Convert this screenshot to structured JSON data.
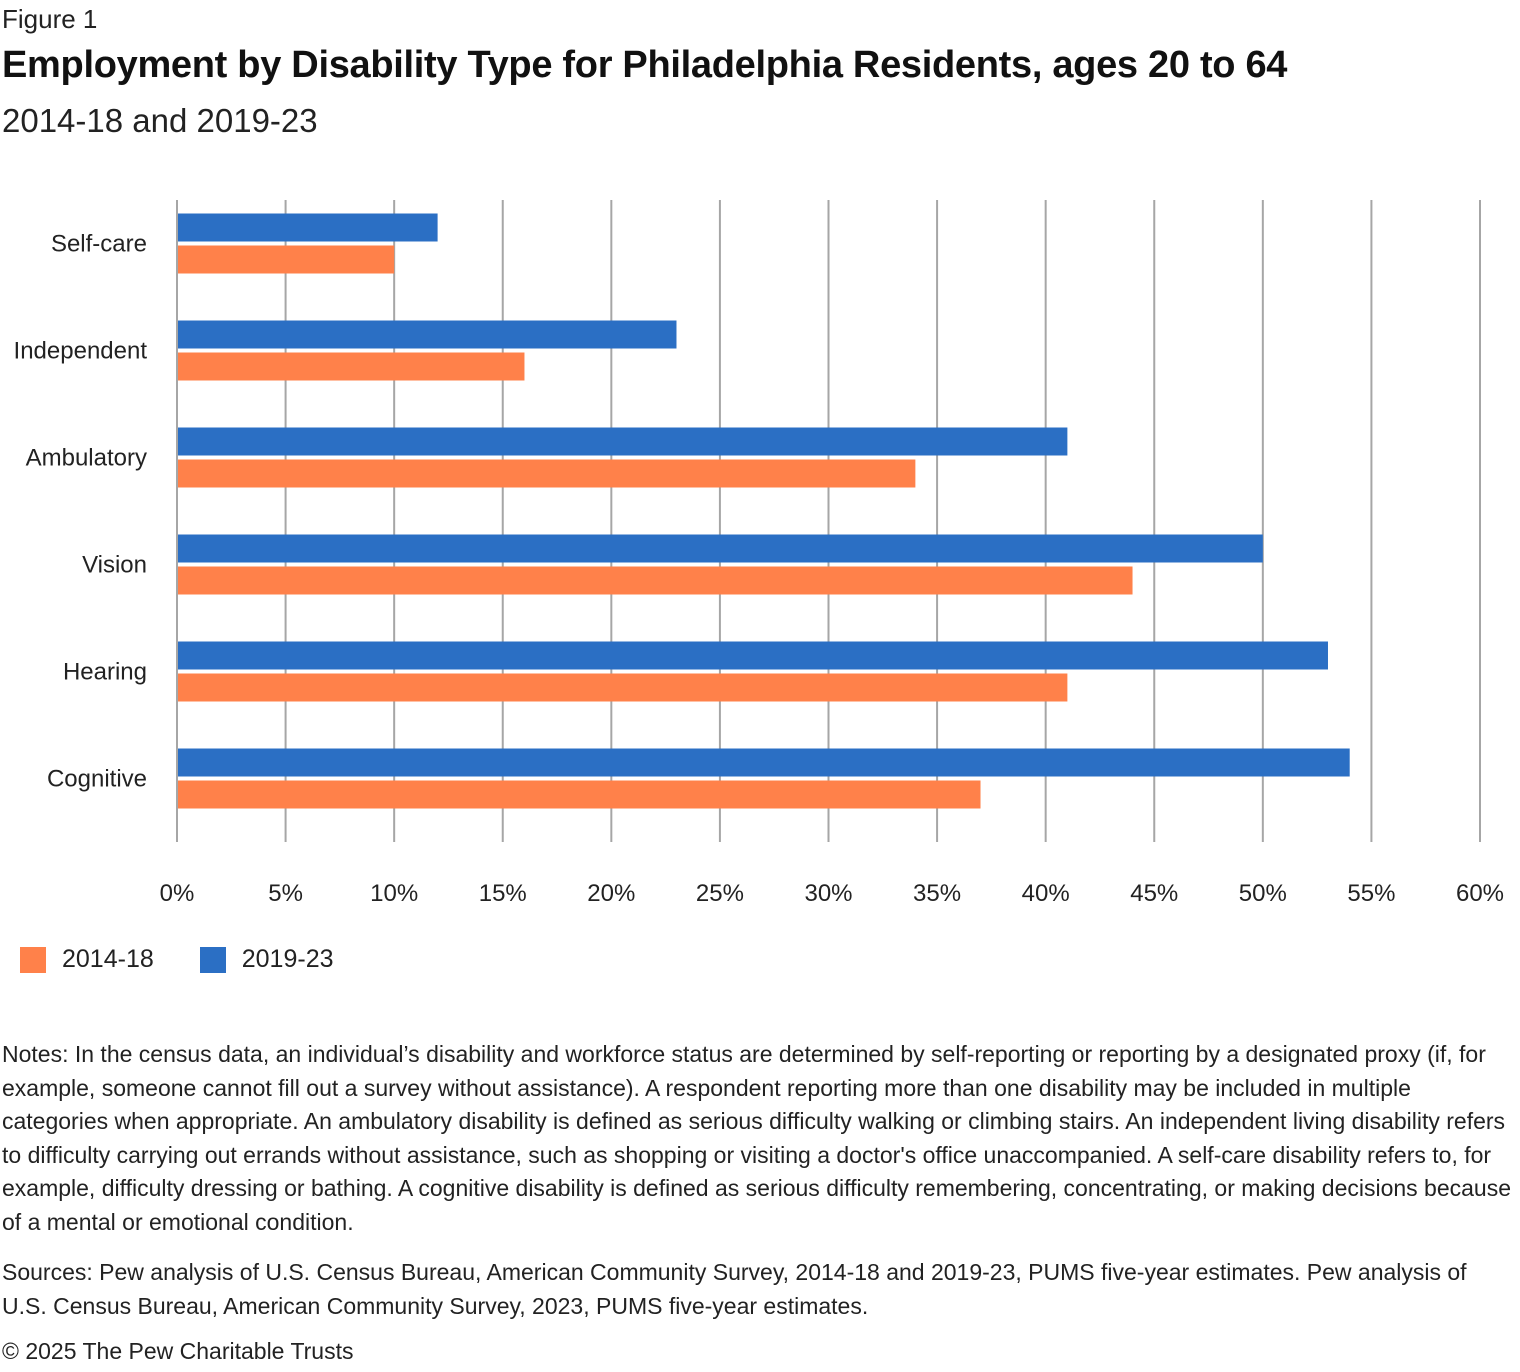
{
  "figure_label": "Figure 1",
  "notes": "Notes: In the census data, an individual’s disability and workforce status are determined by self-reporting or reporting by a designated proxy (if, for example, someone cannot fill out a survey without assistance). A respondent reporting more than one disability may be included in multiple categories when appropriate. An ambulatory disability is defined as serious difficulty walking or climbing stairs. An independent living disability refers to difficulty carrying out errands without assistance, such as shopping or visiting a doctor's office unaccompanied. A self-care disability refers to, for example, difficulty dressing or bathing. A cognitive disability is defined as serious difficulty remembering, concentrating, or making decisions because of a mental or emotional condition.",
  "sources": "Sources: Pew analysis of U.S. Census Bureau, American Community Survey, 2014-18 and 2019-23, PUMS five-year estimates. Pew analysis of U.S. Census Bureau, American Community Survey, 2023, PUMS five-year estimates.",
  "copyright": "© 2025 The Pew Charitable Trusts",
  "chart_data": {
    "type": "bar",
    "orientation": "horizontal",
    "title": "Employment by Disability Type for Philadelphia Residents, ages 20 to 64",
    "subtitle": "2014-18 and 2019-23",
    "xlabel": "",
    "ylabel": "",
    "categories": [
      "Self-care",
      "Independent",
      "Ambulatory",
      "Vision",
      "Hearing",
      "Cognitive"
    ],
    "series": [
      {
        "name": "2019-23",
        "color": "#2b6fc4",
        "values": [
          12,
          23,
          41,
          50,
          53,
          54
        ]
      },
      {
        "name": "2014-18",
        "color": "#ff814a",
        "values": [
          10,
          16,
          34,
          44,
          41,
          37
        ]
      }
    ],
    "xlim": [
      0,
      60
    ],
    "xticks": [
      0,
      5,
      10,
      15,
      20,
      25,
      30,
      35,
      40,
      45,
      50,
      55,
      60
    ],
    "xtick_labels": [
      "0%",
      "5%",
      "10%",
      "15%",
      "20%",
      "25%",
      "30%",
      "35%",
      "40%",
      "45%",
      "50%",
      "55%",
      "60%"
    ],
    "gridlines": "vertical",
    "gridline_color": "#a6a6a6",
    "legend": [
      {
        "name": "2014-18",
        "color": "#ff814a"
      },
      {
        "name": "2019-23",
        "color": "#2b6fc4"
      }
    ],
    "legend_position": "bottom-left"
  }
}
